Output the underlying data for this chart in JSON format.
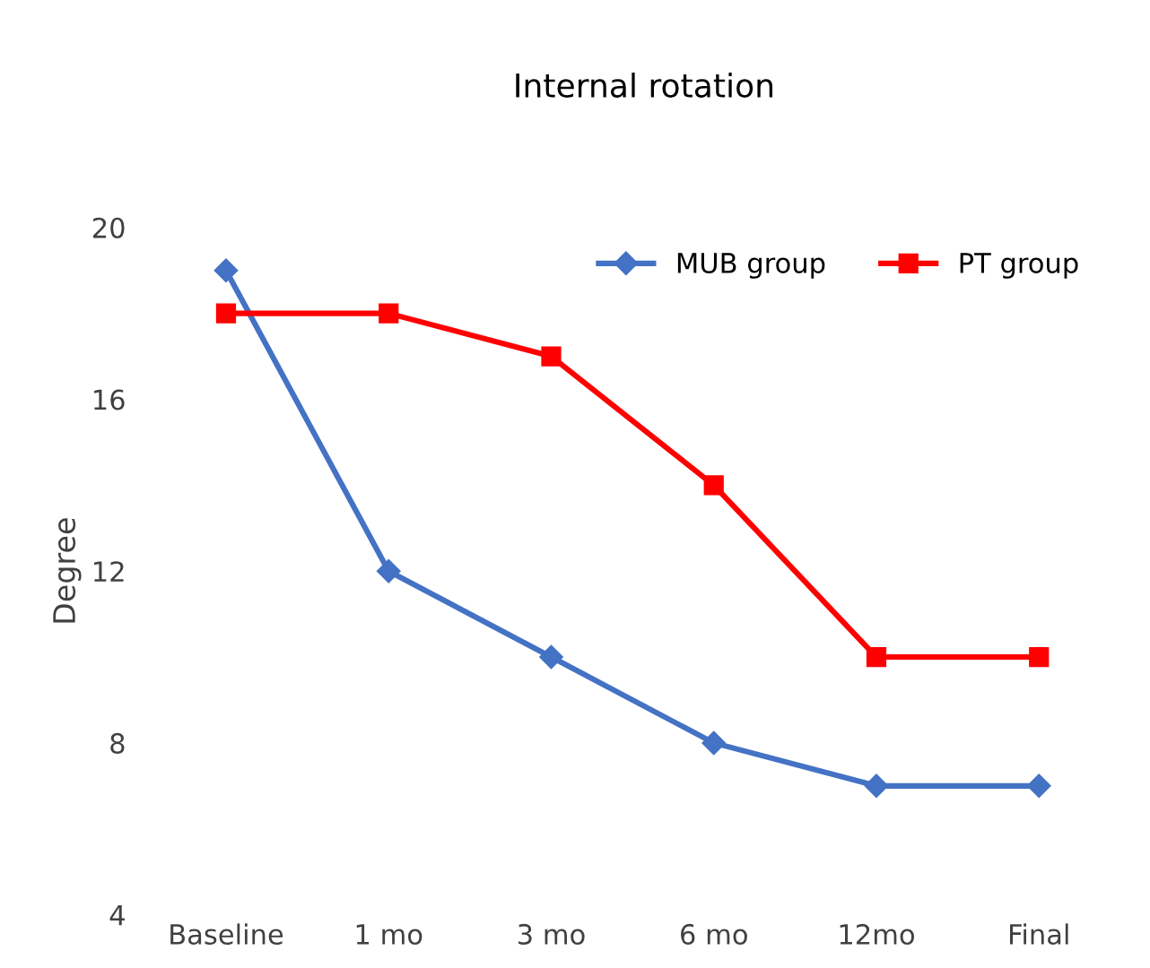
{
  "chart_data": {
    "type": "line",
    "title": "Internal rotation",
    "ylabel": "Degree",
    "categories": [
      "Baseline",
      "1 mo",
      "3 mo",
      "6 mo",
      "12mo",
      "Final"
    ],
    "series": [
      {
        "name": "MUB group",
        "color": "#4472c4",
        "marker": "diamond",
        "values": [
          19,
          12,
          10,
          8,
          7,
          7
        ]
      },
      {
        "name": "PT group",
        "color": "#ff0000",
        "marker": "square",
        "values": [
          18,
          18,
          17,
          14,
          10,
          10
        ]
      }
    ],
    "ylim": [
      4,
      20
    ],
    "yticks": [
      4,
      8,
      12,
      16,
      20
    ],
    "grid": false,
    "legend": "top right",
    "line_style": "solid"
  }
}
